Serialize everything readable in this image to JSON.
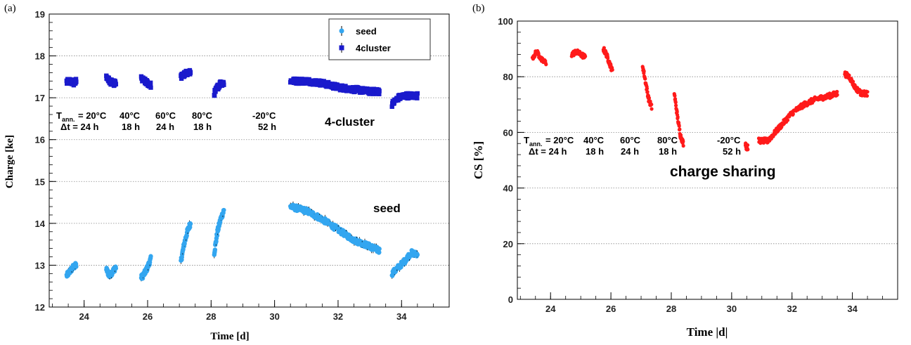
{
  "chart_data": [
    {
      "panel": "(a)",
      "type": "scatter",
      "xlabel": "Time [d]",
      "ylabel": "Charge [ke]",
      "xlim": [
        22.9,
        35.5
      ],
      "ylim": [
        12,
        19
      ],
      "xticks": [
        "24",
        "26",
        "28",
        "30",
        "32",
        "34"
      ],
      "yticks": [
        "12",
        "13",
        "14",
        "15",
        "16",
        "17",
        "18",
        "19"
      ],
      "grid": "horizontal dotted",
      "legend_position": "top-right",
      "legend": [
        {
          "label": "seed",
          "color": "#33a6f0",
          "marker": "circle"
        },
        {
          "label": "4cluster",
          "color": "#1a1acc",
          "marker": "square"
        }
      ],
      "annotations": {
        "row1": [
          "T",
          "ann.",
          "= 20°C",
          "40°C",
          "60°C",
          "80°C",
          "-20°C"
        ],
        "row2": [
          "Δt = 24 h",
          "18 h",
          "24 h",
          "18 h",
          "52 h"
        ],
        "cluster_label": "4-cluster",
        "seed_label": "seed"
      },
      "series": [
        {
          "name": "seed",
          "color": "#33a6f0",
          "segments": [
            {
              "x": [
                23.45,
                23.55,
                23.65,
                23.75
              ],
              "y": [
                12.75,
                12.85,
                12.95,
                13.0
              ]
            },
            {
              "x": [
                24.7,
                24.8,
                24.9,
                25.0
              ],
              "y": [
                12.9,
                12.75,
                12.85,
                12.95
              ]
            },
            {
              "x": [
                25.8,
                25.9,
                26.0,
                26.1
              ],
              "y": [
                12.7,
                12.8,
                12.95,
                13.15
              ]
            },
            {
              "x": [
                27.05,
                27.15,
                27.25,
                27.35
              ],
              "y": [
                13.1,
                13.5,
                13.8,
                14.0
              ]
            },
            {
              "x": [
                28.1,
                28.2,
                28.3,
                28.4
              ],
              "y": [
                13.3,
                13.8,
                14.1,
                14.3
              ]
            },
            {
              "x": [
                30.5,
                31.0,
                31.5,
                32.0,
                32.5,
                33.0,
                33.3
              ],
              "y": [
                14.4,
                14.3,
                14.1,
                13.85,
                13.6,
                13.45,
                13.35
              ]
            },
            {
              "x": [
                33.7,
                33.9,
                34.1,
                34.3,
                34.5
              ],
              "y": [
                12.8,
                12.95,
                13.1,
                13.3,
                13.25
              ]
            }
          ]
        },
        {
          "name": "4cluster",
          "color": "#1a1acc",
          "segments": [
            {
              "x": [
                23.45,
                23.55,
                23.65,
                23.75
              ],
              "y": [
                17.4,
                17.4,
                17.35,
                17.4
              ]
            },
            {
              "x": [
                24.7,
                24.8,
                24.9,
                25.0
              ],
              "y": [
                17.5,
                17.4,
                17.35,
                17.35
              ]
            },
            {
              "x": [
                25.8,
                25.9,
                26.0,
                26.1
              ],
              "y": [
                17.45,
                17.4,
                17.35,
                17.3
              ]
            },
            {
              "x": [
                27.05,
                27.15,
                27.25,
                27.35
              ],
              "y": [
                17.5,
                17.55,
                17.6,
                17.6
              ]
            },
            {
              "x": [
                28.1,
                28.2,
                28.3,
                28.4
              ],
              "y": [
                17.1,
                17.25,
                17.35,
                17.35
              ]
            },
            {
              "x": [
                30.5,
                31.0,
                31.5,
                32.0,
                32.5,
                33.0,
                33.3
              ],
              "y": [
                17.4,
                17.4,
                17.35,
                17.25,
                17.2,
                17.15,
                17.15
              ]
            },
            {
              "x": [
                33.7,
                33.9,
                34.1,
                34.3,
                34.5
              ],
              "y": [
                16.85,
                17.0,
                17.05,
                17.05,
                17.05
              ]
            }
          ]
        }
      ]
    },
    {
      "panel": "(b)",
      "type": "scatter",
      "xlabel": "Time |d|",
      "ylabel": "CS [%]",
      "xlim": [
        22.9,
        35.5
      ],
      "ylim": [
        0,
        100
      ],
      "xticks": [
        "24",
        "26",
        "28",
        "30",
        "32",
        "34"
      ],
      "yticks": [
        "0",
        "20",
        "40",
        "60",
        "80",
        "100"
      ],
      "grid": "horizontal dotted",
      "annotations": {
        "row1": [
          "T",
          "ann.",
          "= 20°C",
          "40°C",
          "60°C",
          "80°C",
          "-20°C"
        ],
        "row2": [
          "Δt = 24 h",
          "18 h",
          "24 h",
          "18 h",
          "52 h"
        ],
        "cs_label": "charge sharing"
      },
      "series": [
        {
          "name": "CS",
          "color": "#ff1a1a",
          "segments": [
            {
              "x": [
                23.4,
                23.55,
                23.7,
                23.85
              ],
              "y": [
                87,
                89,
                86,
                85
              ]
            },
            {
              "x": [
                24.7,
                24.85,
                25.0,
                25.15
              ],
              "y": [
                88,
                89,
                88,
                87
              ]
            },
            {
              "x": [
                25.75,
                25.85,
                25.95,
                26.05
              ],
              "y": [
                90,
                88,
                85,
                82
              ]
            },
            {
              "x": [
                27.05,
                27.15,
                27.25,
                27.35
              ],
              "y": [
                84,
                78,
                72,
                69
              ]
            },
            {
              "x": [
                28.1,
                28.2,
                28.3,
                28.4
              ],
              "y": [
                74,
                66,
                59,
                56
              ]
            },
            {
              "x": [
                30.5
              ],
              "y": [
                55
              ]
            },
            {
              "x": [
                30.9,
                31.2,
                31.6,
                32.0,
                32.4,
                32.8,
                33.2,
                33.5
              ],
              "y": [
                57,
                57,
                62,
                67,
                70,
                72,
                73,
                74
              ]
            },
            {
              "x": [
                33.75,
                33.9,
                34.1,
                34.3,
                34.5
              ],
              "y": [
                81,
                80,
                76,
                74,
                74
              ]
            }
          ]
        }
      ]
    }
  ]
}
